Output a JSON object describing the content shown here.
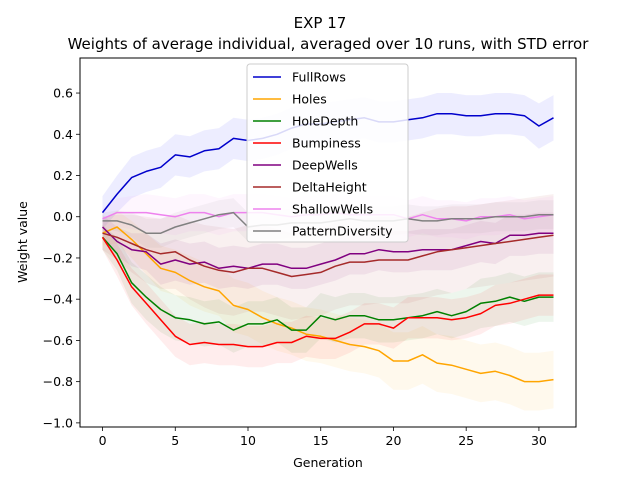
{
  "chart_data": {
    "type": "line",
    "title": "EXP 17",
    "subtitle": "Weights of average individual, averaged over 10 runs, with STD error",
    "xlabel": "Generation",
    "ylabel": "Weight value",
    "xlim": [
      -1.55,
      32.55
    ],
    "ylim": [
      -1.02,
      0.77
    ],
    "xticks": [
      0,
      5,
      10,
      15,
      20,
      25,
      30
    ],
    "yticks": [
      -1.0,
      -0.8,
      -0.6,
      -0.4,
      -0.2,
      0.0,
      0.2,
      0.4,
      0.6
    ],
    "ytick_labels": [
      "−1.0",
      "−0.8",
      "−0.6",
      "−0.4",
      "−0.2",
      "0.0",
      "0.2",
      "0.4",
      "0.6"
    ],
    "grid": false,
    "legend_position": "upper center",
    "x": [
      0,
      1,
      2,
      3,
      4,
      5,
      6,
      7,
      8,
      9,
      10,
      11,
      12,
      13,
      14,
      15,
      16,
      17,
      18,
      19,
      20,
      21,
      22,
      23,
      24,
      25,
      26,
      27,
      28,
      29,
      30,
      31
    ],
    "series": [
      {
        "name": "FullRows",
        "color": "#0000cc",
        "band_color": "#0000ff",
        "values": [
          0.02,
          0.11,
          0.19,
          0.22,
          0.24,
          0.3,
          0.29,
          0.32,
          0.33,
          0.38,
          0.37,
          0.38,
          0.4,
          0.43,
          0.45,
          0.45,
          0.46,
          0.47,
          0.48,
          0.46,
          0.46,
          0.47,
          0.48,
          0.5,
          0.5,
          0.49,
          0.49,
          0.5,
          0.5,
          0.49,
          0.44,
          0.48
        ],
        "err": [
          0.08,
          0.09,
          0.1,
          0.1,
          0.1,
          0.1,
          0.1,
          0.1,
          0.1,
          0.1,
          0.1,
          0.1,
          0.1,
          0.1,
          0.1,
          0.1,
          0.1,
          0.1,
          0.1,
          0.1,
          0.1,
          0.1,
          0.1,
          0.1,
          0.1,
          0.1,
          0.1,
          0.1,
          0.1,
          0.1,
          0.11,
          0.11
        ]
      },
      {
        "name": "Holes",
        "color": "#ffa500",
        "band_color": "#ffa500",
        "values": [
          -0.08,
          -0.05,
          -0.11,
          -0.18,
          -0.25,
          -0.27,
          -0.31,
          -0.34,
          -0.36,
          -0.43,
          -0.45,
          -0.49,
          -0.52,
          -0.54,
          -0.57,
          -0.58,
          -0.6,
          -0.62,
          -0.63,
          -0.65,
          -0.7,
          -0.7,
          -0.67,
          -0.71,
          -0.72,
          -0.74,
          -0.76,
          -0.75,
          -0.77,
          -0.8,
          -0.8,
          -0.79
        ],
        "err": [
          0.06,
          0.08,
          0.09,
          0.1,
          0.11,
          0.11,
          0.12,
          0.12,
          0.12,
          0.13,
          0.13,
          0.13,
          0.13,
          0.13,
          0.13,
          0.13,
          0.13,
          0.13,
          0.13,
          0.13,
          0.14,
          0.14,
          0.14,
          0.14,
          0.14,
          0.14,
          0.14,
          0.14,
          0.14,
          0.14,
          0.14,
          0.14
        ]
      },
      {
        "name": "HoleDepth",
        "color": "#008000",
        "band_color": "#008000",
        "values": [
          -0.1,
          -0.18,
          -0.32,
          -0.39,
          -0.45,
          -0.49,
          -0.5,
          -0.52,
          -0.51,
          -0.55,
          -0.52,
          -0.52,
          -0.5,
          -0.55,
          -0.55,
          -0.48,
          -0.5,
          -0.48,
          -0.48,
          -0.5,
          -0.5,
          -0.49,
          -0.48,
          -0.46,
          -0.48,
          -0.46,
          -0.42,
          -0.41,
          -0.39,
          -0.41,
          -0.39,
          -0.39
        ],
        "err": [
          0.06,
          0.08,
          0.1,
          0.11,
          0.11,
          0.11,
          0.11,
          0.11,
          0.11,
          0.11,
          0.11,
          0.11,
          0.11,
          0.11,
          0.11,
          0.11,
          0.11,
          0.11,
          0.11,
          0.11,
          0.11,
          0.11,
          0.11,
          0.11,
          0.11,
          0.11,
          0.12,
          0.12,
          0.12,
          0.12,
          0.12,
          0.12
        ]
      },
      {
        "name": "Bumpiness",
        "color": "#ff0000",
        "band_color": "#ff0000",
        "values": [
          -0.1,
          -0.21,
          -0.34,
          -0.42,
          -0.5,
          -0.58,
          -0.62,
          -0.61,
          -0.62,
          -0.62,
          -0.63,
          -0.63,
          -0.61,
          -0.61,
          -0.58,
          -0.59,
          -0.59,
          -0.56,
          -0.52,
          -0.52,
          -0.54,
          -0.49,
          -0.49,
          -0.49,
          -0.5,
          -0.49,
          -0.47,
          -0.43,
          -0.42,
          -0.4,
          -0.38,
          -0.38
        ],
        "err": [
          0.06,
          0.08,
          0.09,
          0.1,
          0.1,
          0.1,
          0.1,
          0.1,
          0.1,
          0.1,
          0.1,
          0.1,
          0.1,
          0.1,
          0.1,
          0.1,
          0.1,
          0.1,
          0.1,
          0.1,
          0.1,
          0.1,
          0.1,
          0.1,
          0.1,
          0.1,
          0.1,
          0.1,
          0.1,
          0.1,
          0.1,
          0.1
        ]
      },
      {
        "name": "DeepWells",
        "color": "#800080",
        "band_color": "#800080",
        "values": [
          -0.05,
          -0.12,
          -0.16,
          -0.17,
          -0.23,
          -0.21,
          -0.23,
          -0.22,
          -0.25,
          -0.24,
          -0.25,
          -0.23,
          -0.23,
          -0.25,
          -0.25,
          -0.23,
          -0.21,
          -0.18,
          -0.18,
          -0.16,
          -0.17,
          -0.17,
          -0.16,
          -0.16,
          -0.16,
          -0.14,
          -0.12,
          -0.13,
          -0.09,
          -0.09,
          -0.08,
          -0.08
        ],
        "err": [
          0.06,
          0.07,
          0.08,
          0.09,
          0.1,
          0.1,
          0.1,
          0.1,
          0.1,
          0.1,
          0.1,
          0.1,
          0.1,
          0.1,
          0.1,
          0.1,
          0.1,
          0.1,
          0.1,
          0.1,
          0.1,
          0.1,
          0.1,
          0.1,
          0.1,
          0.1,
          0.1,
          0.1,
          0.1,
          0.1,
          0.1,
          0.1
        ]
      },
      {
        "name": "DeltaHeight",
        "color": "#a52a2a",
        "band_color": "#a52a2a",
        "values": [
          -0.08,
          -0.1,
          -0.13,
          -0.16,
          -0.18,
          -0.17,
          -0.21,
          -0.24,
          -0.26,
          -0.27,
          -0.25,
          -0.25,
          -0.27,
          -0.29,
          -0.28,
          -0.27,
          -0.24,
          -0.22,
          -0.22,
          -0.21,
          -0.21,
          -0.21,
          -0.19,
          -0.17,
          -0.16,
          -0.15,
          -0.14,
          -0.13,
          -0.12,
          -0.11,
          -0.1,
          -0.09
        ],
        "err": [
          0.08,
          0.11,
          0.14,
          0.16,
          0.17,
          0.18,
          0.19,
          0.2,
          0.21,
          0.21,
          0.21,
          0.21,
          0.21,
          0.21,
          0.21,
          0.21,
          0.21,
          0.21,
          0.21,
          0.21,
          0.21,
          0.21,
          0.21,
          0.21,
          0.21,
          0.2,
          0.2,
          0.2,
          0.2,
          0.2,
          0.2,
          0.2
        ]
      },
      {
        "name": "ShallowWells",
        "color": "#ee82ee",
        "band_color": "#ee82ee",
        "values": [
          -0.01,
          0.02,
          0.02,
          0.02,
          0.01,
          0.0,
          0.02,
          0.02,
          0.0,
          0.02,
          0.02,
          0.02,
          0.01,
          0.0,
          0.01,
          0.01,
          0.02,
          0.01,
          0.01,
          0.01,
          0.01,
          -0.01,
          0.01,
          -0.01,
          -0.01,
          -0.02,
          0.0,
          0.0,
          0.01,
          -0.01,
          0.0,
          0.01
        ],
        "err": [
          0.05,
          0.07,
          0.08,
          0.09,
          0.09,
          0.09,
          0.09,
          0.09,
          0.09,
          0.09,
          0.09,
          0.09,
          0.09,
          0.09,
          0.09,
          0.09,
          0.09,
          0.09,
          0.09,
          0.09,
          0.09,
          0.09,
          0.09,
          0.09,
          0.09,
          0.09,
          0.09,
          0.09,
          0.09,
          0.09,
          0.09,
          0.09
        ]
      },
      {
        "name": "PatternDiversity",
        "color": "#808080",
        "band_color": "#808080",
        "values": [
          -0.02,
          -0.02,
          -0.04,
          -0.08,
          -0.08,
          -0.05,
          -0.03,
          -0.01,
          0.01,
          0.02,
          -0.05,
          -0.04,
          -0.04,
          -0.03,
          -0.03,
          -0.03,
          -0.02,
          -0.01,
          -0.02,
          -0.02,
          -0.02,
          -0.01,
          -0.02,
          -0.02,
          -0.01,
          -0.01,
          -0.01,
          0.0,
          0.0,
          0.0,
          0.01,
          0.01
        ],
        "err": [
          0.04,
          0.05,
          0.06,
          0.07,
          0.07,
          0.07,
          0.07,
          0.07,
          0.07,
          0.07,
          0.07,
          0.07,
          0.07,
          0.07,
          0.07,
          0.07,
          0.07,
          0.07,
          0.07,
          0.07,
          0.07,
          0.07,
          0.07,
          0.07,
          0.07,
          0.07,
          0.07,
          0.07,
          0.07,
          0.07,
          0.07,
          0.07
        ]
      }
    ]
  }
}
